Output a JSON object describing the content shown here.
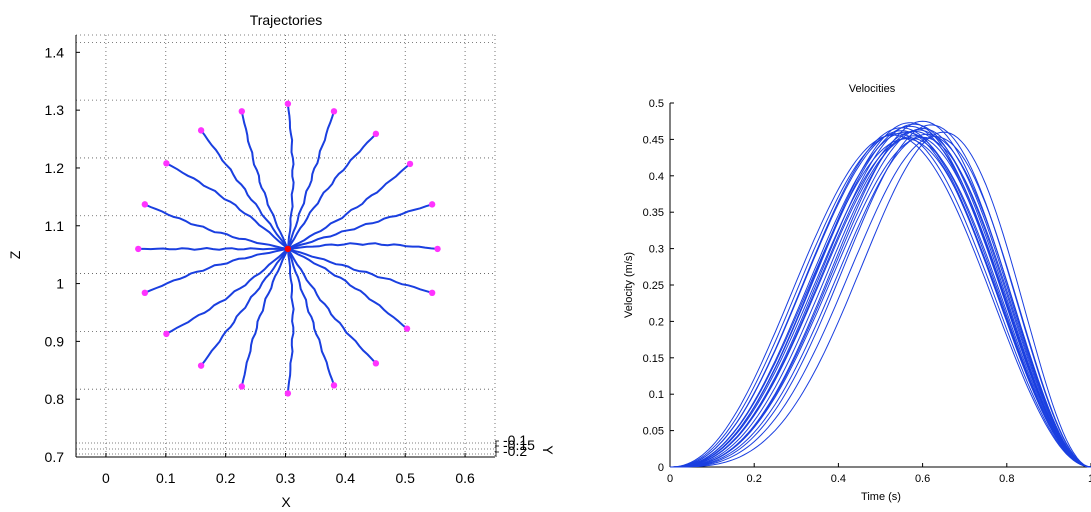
{
  "chart_data": [
    {
      "type": "line",
      "title": "Trajectories",
      "xlabel": "X",
      "ylabel": "Z",
      "depth_label": "Y",
      "depth_tick_labels": [
        "-0.1",
        "-0.15",
        "-0.2"
      ],
      "xlim": [
        -0.05,
        0.65
      ],
      "ylim": [
        0.7,
        1.43
      ],
      "x_tick_labels": [
        "0",
        "0.1",
        "0.2",
        "0.3",
        "0.4",
        "0.5",
        "0.6"
      ],
      "y_tick_labels": [
        "0.7",
        "0.8",
        "0.9",
        "1",
        "1.1",
        "1.2",
        "1.3",
        "1.4"
      ],
      "grid": true,
      "colors": {
        "trajectory": "#1a3fe0",
        "target": "#ff33ff",
        "center": "#ff0000"
      },
      "center": {
        "x": 0.304,
        "z": 1.06
      },
      "targets": [
        {
          "x": 0.554,
          "z": 1.06
        },
        {
          "x": 0.545,
          "z": 1.137
        },
        {
          "x": 0.508,
          "z": 1.207
        },
        {
          "x": 0.451,
          "z": 1.259
        },
        {
          "x": 0.381,
          "z": 1.298
        },
        {
          "x": 0.304,
          "z": 1.311
        },
        {
          "x": 0.227,
          "z": 1.298
        },
        {
          "x": 0.159,
          "z": 1.265
        },
        {
          "x": 0.101,
          "z": 1.208
        },
        {
          "x": 0.065,
          "z": 1.137
        },
        {
          "x": 0.054,
          "z": 1.06
        },
        {
          "x": 0.065,
          "z": 0.984
        },
        {
          "x": 0.101,
          "z": 0.913
        },
        {
          "x": 0.159,
          "z": 0.858
        },
        {
          "x": 0.227,
          "z": 0.822
        },
        {
          "x": 0.304,
          "z": 0.81
        },
        {
          "x": 0.381,
          "z": 0.824
        },
        {
          "x": 0.451,
          "z": 0.862
        },
        {
          "x": 0.503,
          "z": 0.922
        },
        {
          "x": 0.545,
          "z": 0.984
        }
      ]
    },
    {
      "type": "line",
      "title": "Velocities",
      "xlabel": "Time (s)",
      "ylabel": "Velocity (m/s)",
      "xlim": [
        0,
        1
      ],
      "ylim": [
        0,
        0.5
      ],
      "x_tick_labels": [
        "0",
        "0.2",
        "0.4",
        "0.6",
        "0.8",
        "1"
      ],
      "y_tick_labels": [
        "0",
        "0.05",
        "0.1",
        "0.15",
        "0.2",
        "0.25",
        "0.3",
        "0.35",
        "0.4",
        "0.45",
        "0.5"
      ],
      "grid": false,
      "colors": {
        "series": "#1a3fe0"
      },
      "series": [
        {
          "start": 0.0,
          "end": 1.0,
          "peak_time": 0.57,
          "peak": 0.468
        },
        {
          "start": 0.0,
          "end": 1.0,
          "peak_time": 0.55,
          "peak": 0.462
        },
        {
          "start": 0.0,
          "end": 1.0,
          "peak_time": 0.58,
          "peak": 0.455
        },
        {
          "start": 0.0,
          "end": 1.0,
          "peak_time": 0.6,
          "peak": 0.475
        },
        {
          "start": 0.0,
          "end": 1.0,
          "peak_time": 0.56,
          "peak": 0.451
        },
        {
          "start": 0.0,
          "end": 1.0,
          "peak_time": 0.62,
          "peak": 0.47
        },
        {
          "start": 0.0,
          "end": 1.0,
          "peak_time": 0.54,
          "peak": 0.458
        },
        {
          "start": 0.0,
          "end": 1.0,
          "peak_time": 0.59,
          "peak": 0.463
        },
        {
          "start": 0.0,
          "end": 1.0,
          "peak_time": 0.65,
          "peak": 0.46
        },
        {
          "start": 0.0,
          "end": 1.0,
          "peak_time": 0.57,
          "peak": 0.452
        },
        {
          "start": 0.0,
          "end": 1.0,
          "peak_time": 0.55,
          "peak": 0.466
        },
        {
          "start": 0.0,
          "end": 1.0,
          "peak_time": 0.61,
          "peak": 0.457
        },
        {
          "start": 0.0,
          "end": 1.0,
          "peak_time": 0.58,
          "peak": 0.471
        },
        {
          "start": 0.0,
          "end": 1.0,
          "peak_time": 0.56,
          "peak": 0.46
        },
        {
          "start": 0.0,
          "end": 1.0,
          "peak_time": 0.63,
          "peak": 0.454
        },
        {
          "start": 0.0,
          "end": 1.0,
          "peak_time": 0.6,
          "peak": 0.465
        },
        {
          "start": 0.0,
          "end": 1.0,
          "peak_time": 0.53,
          "peak": 0.456
        },
        {
          "start": 0.0,
          "end": 1.0,
          "peak_time": 0.58,
          "peak": 0.461
        },
        {
          "start": 0.0,
          "end": 1.0,
          "peak_time": 0.6,
          "peak": 0.453
        },
        {
          "start": 0.0,
          "end": 1.0,
          "peak_time": 0.57,
          "peak": 0.473
        }
      ]
    }
  ]
}
